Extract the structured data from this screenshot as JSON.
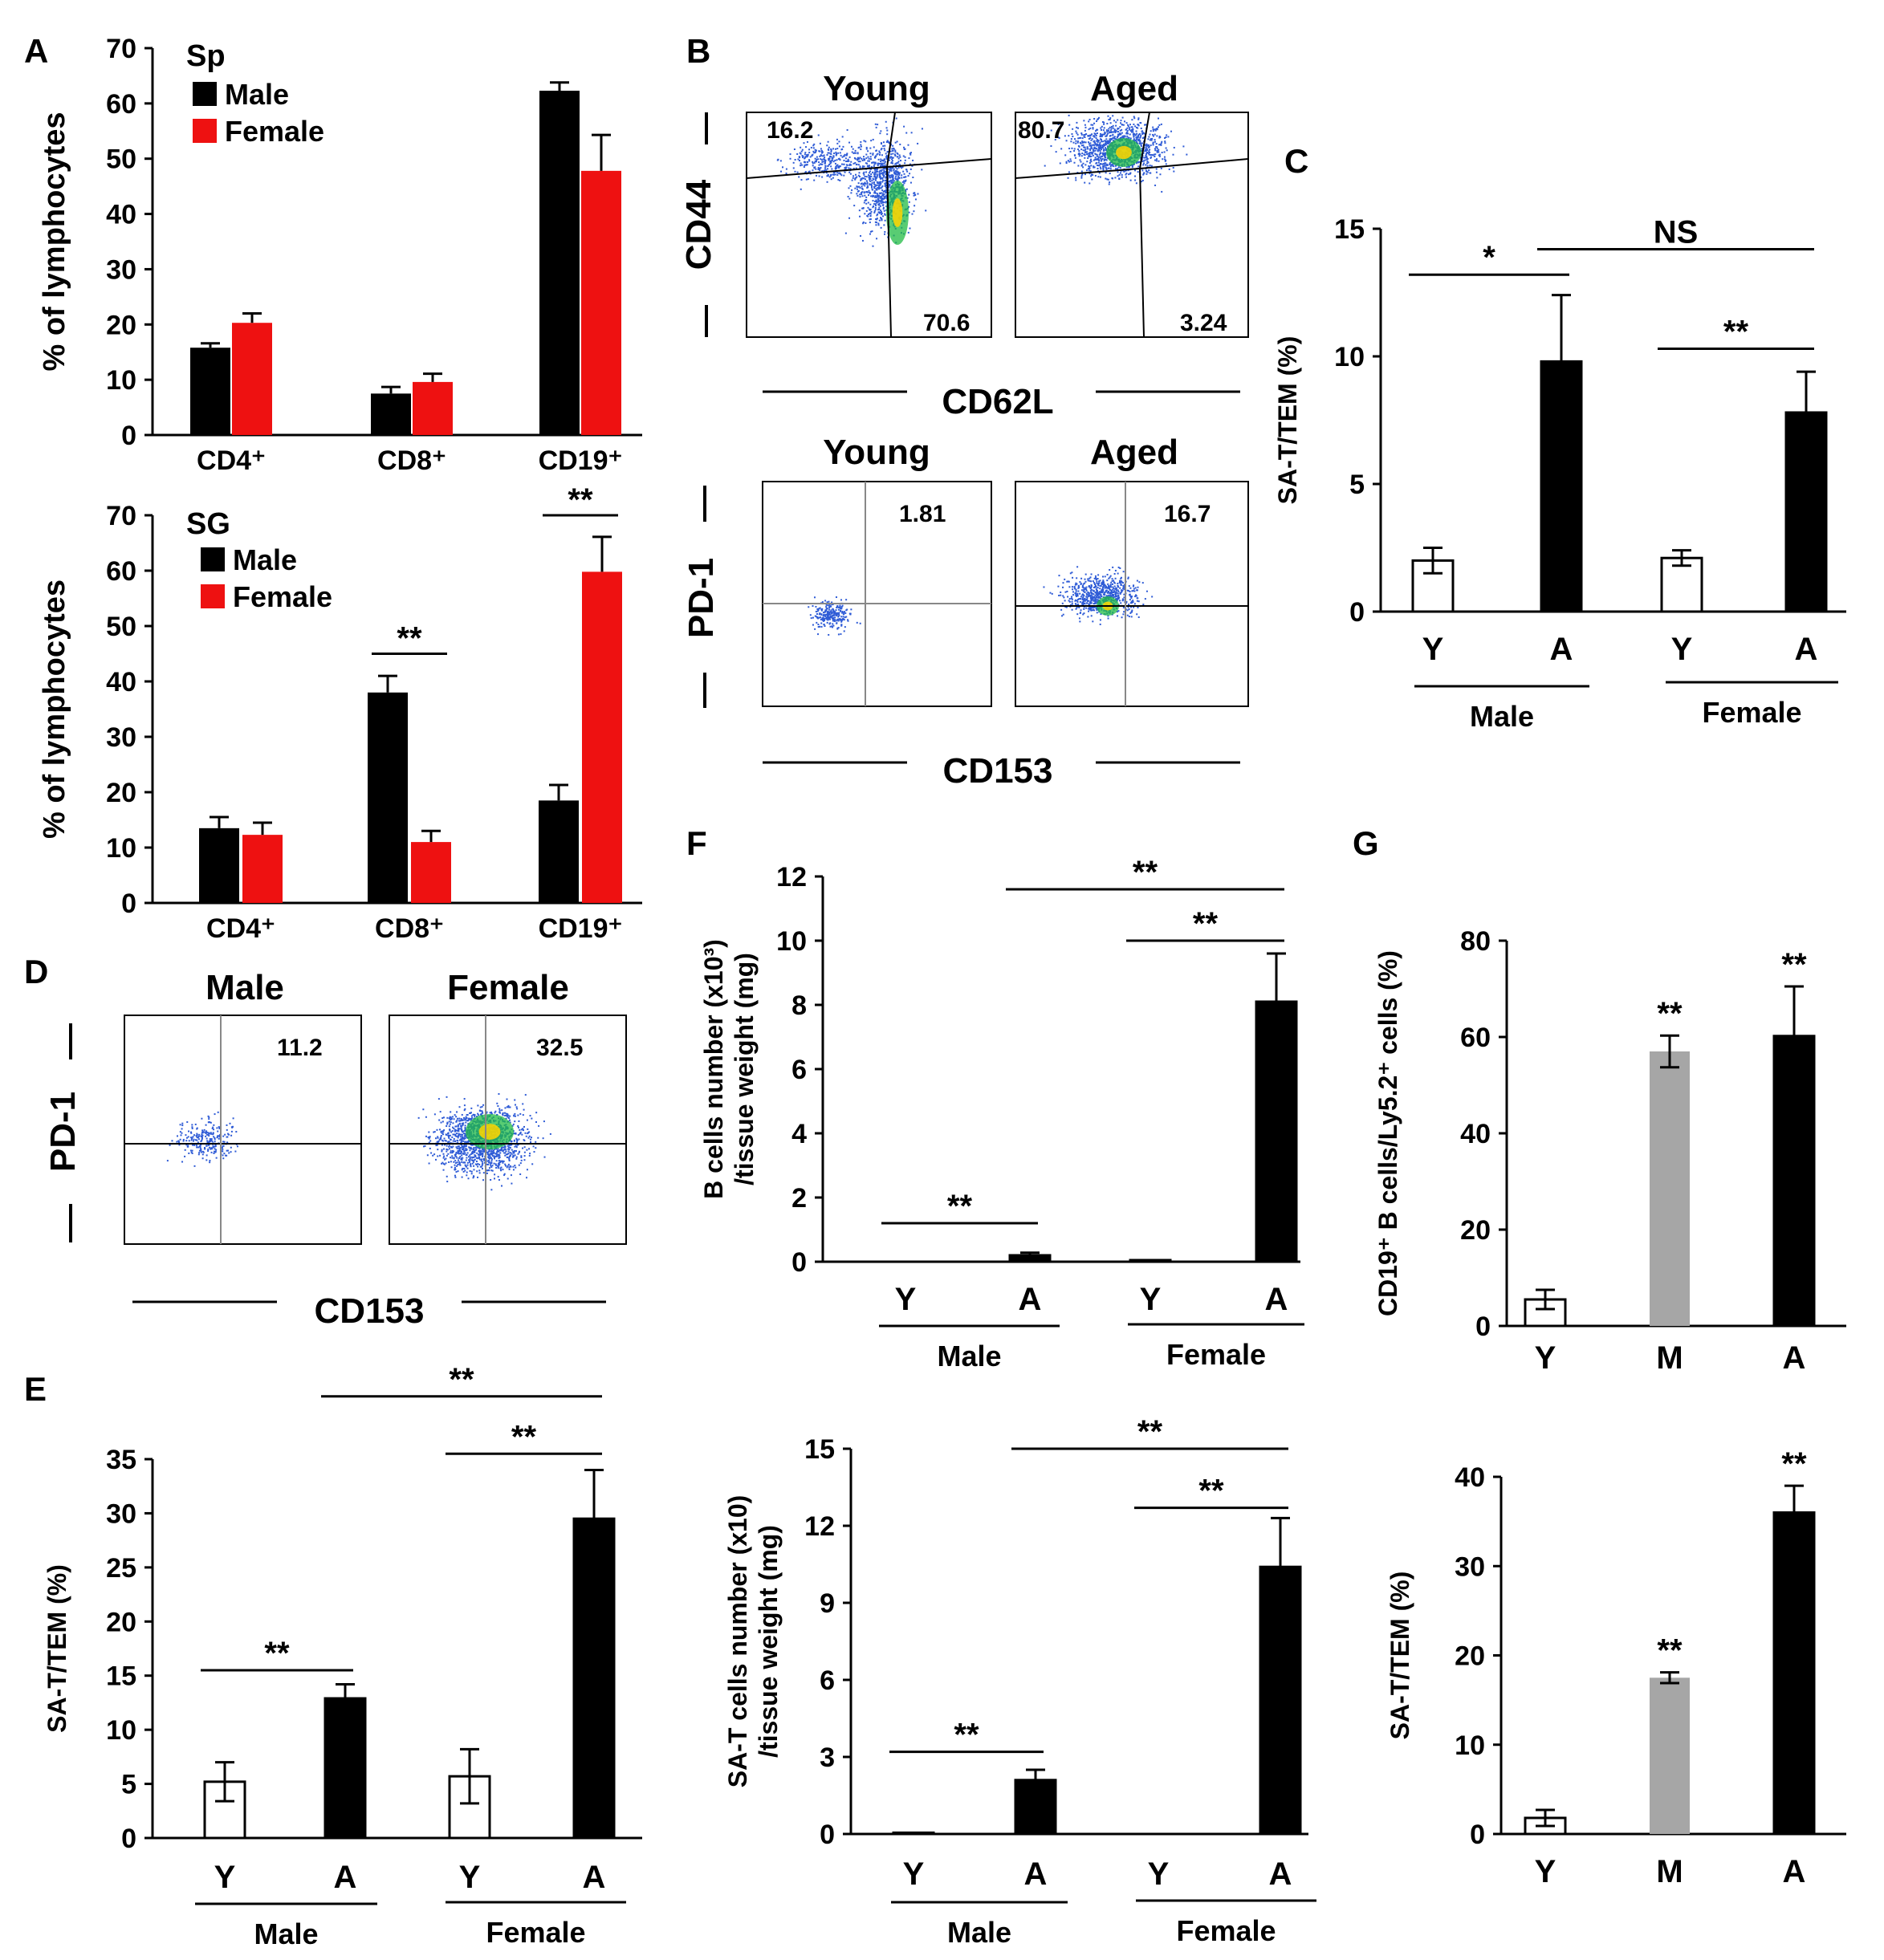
{
  "colors": {
    "male": "#000000",
    "female": "#ee1111",
    "young": "#ffffff",
    "middle": "#a6a6a6",
    "aged": "#000000",
    "axis": "#000000",
    "dots": "#2e5bd6",
    "hot": "#ffd400",
    "core": "#22bb44"
  },
  "panel_letters": {
    "A": "A",
    "B": "B",
    "C": "C",
    "D": "D",
    "E": "E",
    "F": "F",
    "G": "G"
  },
  "chart_data": [
    {
      "id": "A1",
      "type": "bar",
      "title": "Sp",
      "categories": [
        "CD4⁺",
        "CD8⁺",
        "CD19⁺"
      ],
      "ylabel": "% of lymphocytes",
      "ylim": [
        0,
        70
      ],
      "yticks": [
        0,
        10,
        20,
        30,
        40,
        50,
        60,
        70
      ],
      "legend": [
        "Male",
        "Female"
      ],
      "series": [
        {
          "name": "Male",
          "values": [
            15.8,
            7.5,
            62.3
          ],
          "err": [
            0.8,
            1.2,
            1.5
          ],
          "color": "#000000"
        },
        {
          "name": "Female",
          "values": [
            20.3,
            9.6,
            47.8
          ],
          "err": [
            1.7,
            1.5,
            6.5
          ],
          "color": "#ee1111"
        }
      ],
      "annotations": []
    },
    {
      "id": "A2",
      "type": "bar",
      "title": "SG",
      "categories": [
        "CD4⁺",
        "CD8⁺",
        "CD19⁺"
      ],
      "ylabel": "% of lymphocytes",
      "ylim": [
        0,
        70
      ],
      "yticks": [
        0,
        10,
        20,
        30,
        40,
        50,
        60,
        70
      ],
      "legend": [
        "Male",
        "Female"
      ],
      "series": [
        {
          "name": "Male",
          "values": [
            13.5,
            38.0,
            18.5
          ],
          "err": [
            2.0,
            3.0,
            2.8
          ],
          "color": "#000000"
        },
        {
          "name": "Female",
          "values": [
            12.3,
            11.0,
            59.8
          ],
          "err": [
            2.2,
            2.0,
            6.3
          ],
          "color": "#ee1111"
        }
      ],
      "annotations": [
        {
          "text": "**",
          "from": [
            1,
            0
          ],
          "to": [
            1,
            1
          ],
          "y": 45
        },
        {
          "text": "**",
          "from": [
            2,
            0
          ],
          "to": [
            2,
            1
          ],
          "y": 70
        }
      ]
    },
    {
      "id": "C",
      "type": "bar",
      "ylabel": "SA-T/TEM (%)",
      "ylim": [
        0,
        15
      ],
      "yticks": [
        0,
        5,
        10,
        15
      ],
      "categories": [
        "Y",
        "A",
        "Y",
        "A"
      ],
      "groups": [
        "Male",
        "Female"
      ],
      "values": [
        2.0,
        9.8,
        2.1,
        7.8
      ],
      "err": [
        0.5,
        2.6,
        0.3,
        1.6
      ],
      "fills": [
        "young",
        "aged",
        "young",
        "aged"
      ],
      "annotations": [
        {
          "text": "*",
          "from": 0,
          "to": 1,
          "y": 13.2
        },
        {
          "text": "NS",
          "from": 1,
          "to": 3,
          "y": 14.2
        },
        {
          "text": "**",
          "from": 2,
          "to": 3,
          "y": 10.3
        }
      ]
    },
    {
      "id": "E",
      "type": "bar",
      "ylabel": "SA-T/TEM (%)",
      "ylim": [
        0,
        35
      ],
      "yticks": [
        0,
        5,
        10,
        15,
        20,
        25,
        30,
        35
      ],
      "categories": [
        "Y",
        "A",
        "Y",
        "A"
      ],
      "groups": [
        "Male",
        "Female"
      ],
      "values": [
        5.2,
        12.9,
        5.7,
        29.5
      ],
      "err": [
        1.8,
        1.3,
        2.5,
        4.5
      ],
      "fills": [
        "young",
        "aged",
        "young",
        "aged"
      ],
      "annotations": [
        {
          "text": "**",
          "from": 0,
          "to": 1,
          "y": 15.5
        },
        {
          "text": "**",
          "from": 2,
          "to": 3,
          "y": 35.5
        },
        {
          "text": "**",
          "from": 1,
          "to": 3,
          "y": 40.8
        }
      ]
    },
    {
      "id": "F1",
      "type": "bar",
      "ylabel": "B cells number (x10³) /tissue weight (mg)",
      "ylim": [
        0,
        12
      ],
      "yticks": [
        0,
        2,
        4,
        6,
        8,
        10,
        12
      ],
      "categories": [
        "Y",
        "A",
        "Y",
        "A"
      ],
      "groups": [
        "Male",
        "Female"
      ],
      "values": [
        0.0,
        0.2,
        0.05,
        8.1
      ],
      "err": [
        0,
        0.08,
        0,
        1.5
      ],
      "fills": [
        "young",
        "aged",
        "young",
        "aged"
      ],
      "annotations": [
        {
          "text": "**",
          "from": 0,
          "to": 1,
          "y": 1.2
        },
        {
          "text": "**",
          "from": 2,
          "to": 3,
          "y": 10.0
        },
        {
          "text": "**",
          "from": 1,
          "to": 3,
          "y": 11.6
        }
      ]
    },
    {
      "id": "F2",
      "type": "bar",
      "ylabel": "SA-T cells number (x10) /tissue weight (mg)",
      "ylim": [
        0,
        15
      ],
      "yticks": [
        0,
        3,
        6,
        9,
        12,
        15
      ],
      "categories": [
        "Y",
        "A",
        "Y",
        "A"
      ],
      "groups": [
        "Male",
        "Female"
      ],
      "values": [
        0.05,
        2.1,
        0.0,
        10.4
      ],
      "err": [
        0,
        0.4,
        0,
        1.9
      ],
      "fills": [
        "young",
        "aged",
        "young",
        "aged"
      ],
      "annotations": [
        {
          "text": "**",
          "from": 0,
          "to": 1,
          "y": 3.2
        },
        {
          "text": "**",
          "from": 2,
          "to": 3,
          "y": 12.7
        },
        {
          "text": "**",
          "from": 1,
          "to": 3,
          "y": 15.0
        }
      ]
    },
    {
      "id": "G1",
      "type": "bar",
      "ylabel": "CD19⁺ B cells/Ly5.2⁺ cells (%)",
      "ylim": [
        0,
        80
      ],
      "yticks": [
        0,
        20,
        40,
        60,
        80
      ],
      "categories": [
        "Y",
        "M",
        "A"
      ],
      "values": [
        5.5,
        57.0,
        60.2
      ],
      "err": [
        2.0,
        3.3,
        10.3
      ],
      "fills": [
        "young",
        "middle",
        "aged"
      ],
      "stars": [
        "",
        "**",
        "**"
      ]
    },
    {
      "id": "G2",
      "type": "bar",
      "ylabel": "SA-T/TEM (%)",
      "ylim": [
        0,
        40
      ],
      "yticks": [
        0,
        10,
        20,
        30,
        40
      ],
      "categories": [
        "Y",
        "M",
        "A"
      ],
      "values": [
        1.8,
        17.5,
        36.0
      ],
      "err": [
        0.9,
        0.6,
        3.0
      ],
      "fills": [
        "young",
        "middle",
        "aged"
      ],
      "stars": [
        "",
        "**",
        "**"
      ]
    }
  ],
  "flow": {
    "B_top": {
      "titles": [
        "Young",
        "Aged"
      ],
      "values": [
        [
          "16.2",
          "70.6"
        ],
        [
          "80.7",
          "3.24"
        ]
      ],
      "ylabel": "CD44",
      "xlabel": "CD62L"
    },
    "B_bottom": {
      "titles": [
        "Young",
        "Aged"
      ],
      "values": [
        "1.81",
        "16.7"
      ],
      "ylabel": "PD-1",
      "xlabel": "CD153"
    },
    "D": {
      "titles": [
        "Male",
        "Female"
      ],
      "values": [
        "11.2",
        "32.5"
      ],
      "ylabel": "PD-1",
      "xlabel": "CD153"
    }
  }
}
